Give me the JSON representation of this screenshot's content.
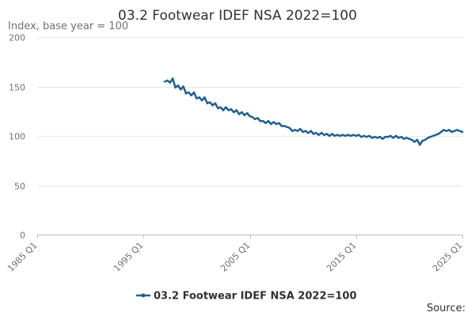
{
  "chart_data": {
    "type": "line",
    "title": "03.2 Footwear IDEF NSA 2022=100",
    "ylabel": "Index, base year = 100",
    "xlabel": "",
    "ylim": [
      0,
      200
    ],
    "yticks": [
      0,
      50,
      100,
      150,
      200
    ],
    "xlim": [
      "1985 Q1",
      "2025 Q1"
    ],
    "xticks": [
      "1985 Q1",
      "1995 Q1",
      "2005 Q1",
      "2015 Q1",
      "2025 Q1"
    ],
    "grid": "horizontal",
    "legend_position": "bottom",
    "source_label": "Source:",
    "series": [
      {
        "name": "03.2 Footwear IDEF NSA 2022=100",
        "color": "#206095",
        "points": [
          [
            "1997 Q1",
            155
          ],
          [
            "1997 Q2",
            156
          ],
          [
            "1997 Q3",
            154
          ],
          [
            "1997 Q4",
            158
          ],
          [
            "1998 Q1",
            149
          ],
          [
            "1998 Q2",
            151
          ],
          [
            "1998 Q3",
            147
          ],
          [
            "1998 Q4",
            150
          ],
          [
            "1999 Q1",
            143
          ],
          [
            "1999 Q2",
            144
          ],
          [
            "1999 Q3",
            141
          ],
          [
            "1999 Q4",
            144
          ],
          [
            "2000 Q1",
            138
          ],
          [
            "2000 Q2",
            139
          ],
          [
            "2000 Q3",
            136
          ],
          [
            "2000 Q4",
            139
          ],
          [
            "2001 Q1",
            133
          ],
          [
            "2001 Q2",
            134
          ],
          [
            "2001 Q3",
            131
          ],
          [
            "2001 Q4",
            133
          ],
          [
            "2002 Q1",
            128
          ],
          [
            "2002 Q2",
            129
          ],
          [
            "2002 Q3",
            126
          ],
          [
            "2002 Q4",
            129
          ],
          [
            "2003 Q1",
            126
          ],
          [
            "2003 Q2",
            127
          ],
          [
            "2003 Q3",
            124
          ],
          [
            "2003 Q4",
            126
          ],
          [
            "2004 Q1",
            122
          ],
          [
            "2004 Q2",
            124
          ],
          [
            "2004 Q3",
            121
          ],
          [
            "2004 Q4",
            123
          ],
          [
            "2005 Q1",
            120
          ],
          [
            "2005 Q2",
            119
          ],
          [
            "2005 Q3",
            117
          ],
          [
            "2005 Q4",
            118
          ],
          [
            "2006 Q1",
            115
          ],
          [
            "2006 Q2",
            115
          ],
          [
            "2006 Q3",
            113
          ],
          [
            "2006 Q4",
            115
          ],
          [
            "2007 Q1",
            112
          ],
          [
            "2007 Q2",
            114
          ],
          [
            "2007 Q3",
            112
          ],
          [
            "2007 Q4",
            113
          ],
          [
            "2008 Q1",
            110
          ],
          [
            "2008 Q2",
            110
          ],
          [
            "2008 Q3",
            109
          ],
          [
            "2008 Q4",
            108
          ],
          [
            "2009 Q1",
            105
          ],
          [
            "2009 Q2",
            106
          ],
          [
            "2009 Q3",
            105
          ],
          [
            "2009 Q4",
            107
          ],
          [
            "2010 Q1",
            104
          ],
          [
            "2010 Q2",
            105
          ],
          [
            "2010 Q3",
            103
          ],
          [
            "2010 Q4",
            105
          ],
          [
            "2011 Q1",
            102
          ],
          [
            "2011 Q2",
            103
          ],
          [
            "2011 Q3",
            101
          ],
          [
            "2011 Q4",
            103
          ],
          [
            "2012 Q1",
            101
          ],
          [
            "2012 Q2",
            102
          ],
          [
            "2012 Q3",
            100
          ],
          [
            "2012 Q4",
            102
          ],
          [
            "2013 Q1",
            100
          ],
          [
            "2013 Q2",
            101
          ],
          [
            "2013 Q3",
            100
          ],
          [
            "2013 Q4",
            101
          ],
          [
            "2014 Q1",
            100
          ],
          [
            "2014 Q2",
            101
          ],
          [
            "2014 Q3",
            100
          ],
          [
            "2014 Q4",
            101
          ],
          [
            "2015 Q1",
            100
          ],
          [
            "2015 Q2",
            101
          ],
          [
            "2015 Q3",
            99
          ],
          [
            "2015 Q4",
            100
          ],
          [
            "2016 Q1",
            99
          ],
          [
            "2016 Q2",
            100
          ],
          [
            "2016 Q3",
            98
          ],
          [
            "2016 Q4",
            99
          ],
          [
            "2017 Q1",
            98
          ],
          [
            "2017 Q2",
            99
          ],
          [
            "2017 Q3",
            97
          ],
          [
            "2017 Q4",
            99
          ],
          [
            "2018 Q1",
            99
          ],
          [
            "2018 Q2",
            100
          ],
          [
            "2018 Q3",
            98
          ],
          [
            "2018 Q4",
            100
          ],
          [
            "2019 Q1",
            98
          ],
          [
            "2019 Q2",
            99
          ],
          [
            "2019 Q3",
            97
          ],
          [
            "2019 Q4",
            98
          ],
          [
            "2020 Q1",
            97
          ],
          [
            "2020 Q2",
            96
          ],
          [
            "2020 Q3",
            94
          ],
          [
            "2020 Q4",
            96
          ],
          [
            "2021 Q1",
            91
          ],
          [
            "2021 Q2",
            95
          ],
          [
            "2021 Q3",
            96
          ],
          [
            "2021 Q4",
            98
          ],
          [
            "2022 Q1",
            99
          ],
          [
            "2022 Q2",
            100
          ],
          [
            "2022 Q3",
            101
          ],
          [
            "2022 Q4",
            102
          ],
          [
            "2023 Q1",
            104
          ],
          [
            "2023 Q2",
            106
          ],
          [
            "2023 Q3",
            105
          ],
          [
            "2023 Q4",
            106
          ],
          [
            "2024 Q1",
            104
          ],
          [
            "2024 Q2",
            105
          ],
          [
            "2024 Q3",
            106
          ],
          [
            "2024 Q4",
            105
          ],
          [
            "2025 Q1",
            104
          ]
        ]
      }
    ]
  }
}
